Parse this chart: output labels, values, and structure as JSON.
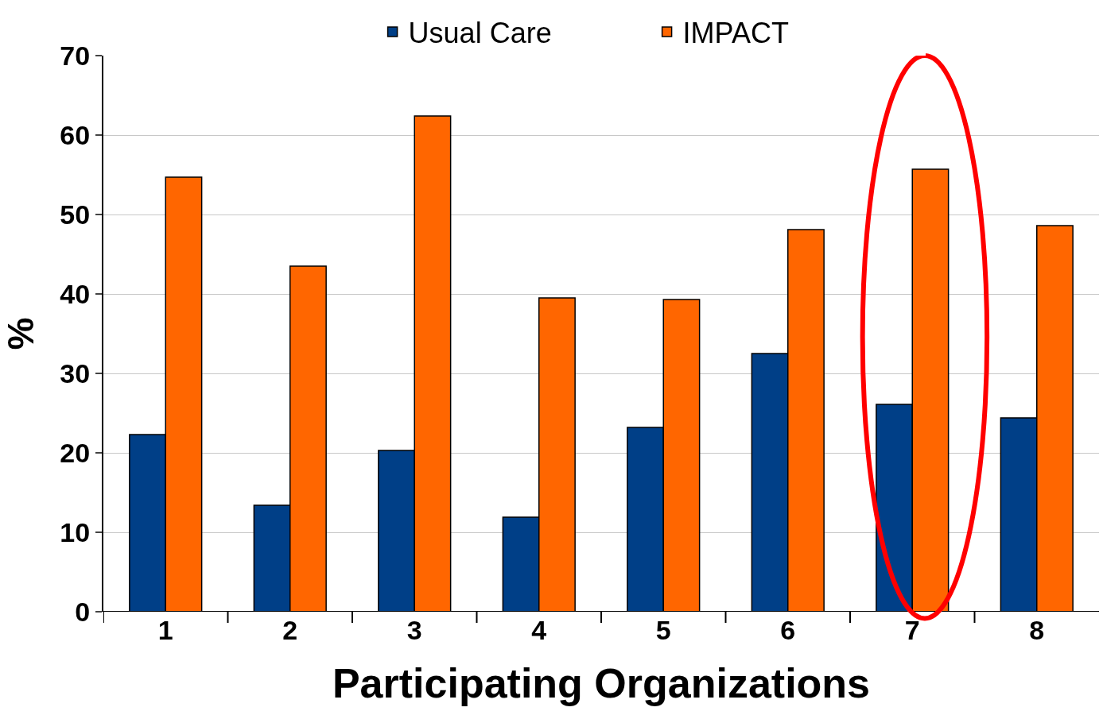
{
  "chart_data": {
    "type": "bar",
    "xlabel": "Participating Organizations",
    "ylabel": "%",
    "categories": [
      "1",
      "2",
      "3",
      "4",
      "5",
      "6",
      "7",
      "8"
    ],
    "series": [
      {
        "name": "Usual Care",
        "color": "#003f87",
        "values": [
          22.3,
          13.4,
          20.3,
          11.9,
          23.2,
          32.5,
          26.1,
          24.4
        ]
      },
      {
        "name": "IMPACT",
        "color": "#ff6600",
        "values": [
          54.7,
          43.5,
          62.4,
          39.5,
          39.3,
          48.1,
          55.7,
          48.6
        ]
      }
    ],
    "ylim": [
      0,
      70
    ],
    "yticks": [
      0,
      10,
      20,
      30,
      40,
      50,
      60,
      70
    ],
    "grid": "y",
    "legend": "top"
  }
}
